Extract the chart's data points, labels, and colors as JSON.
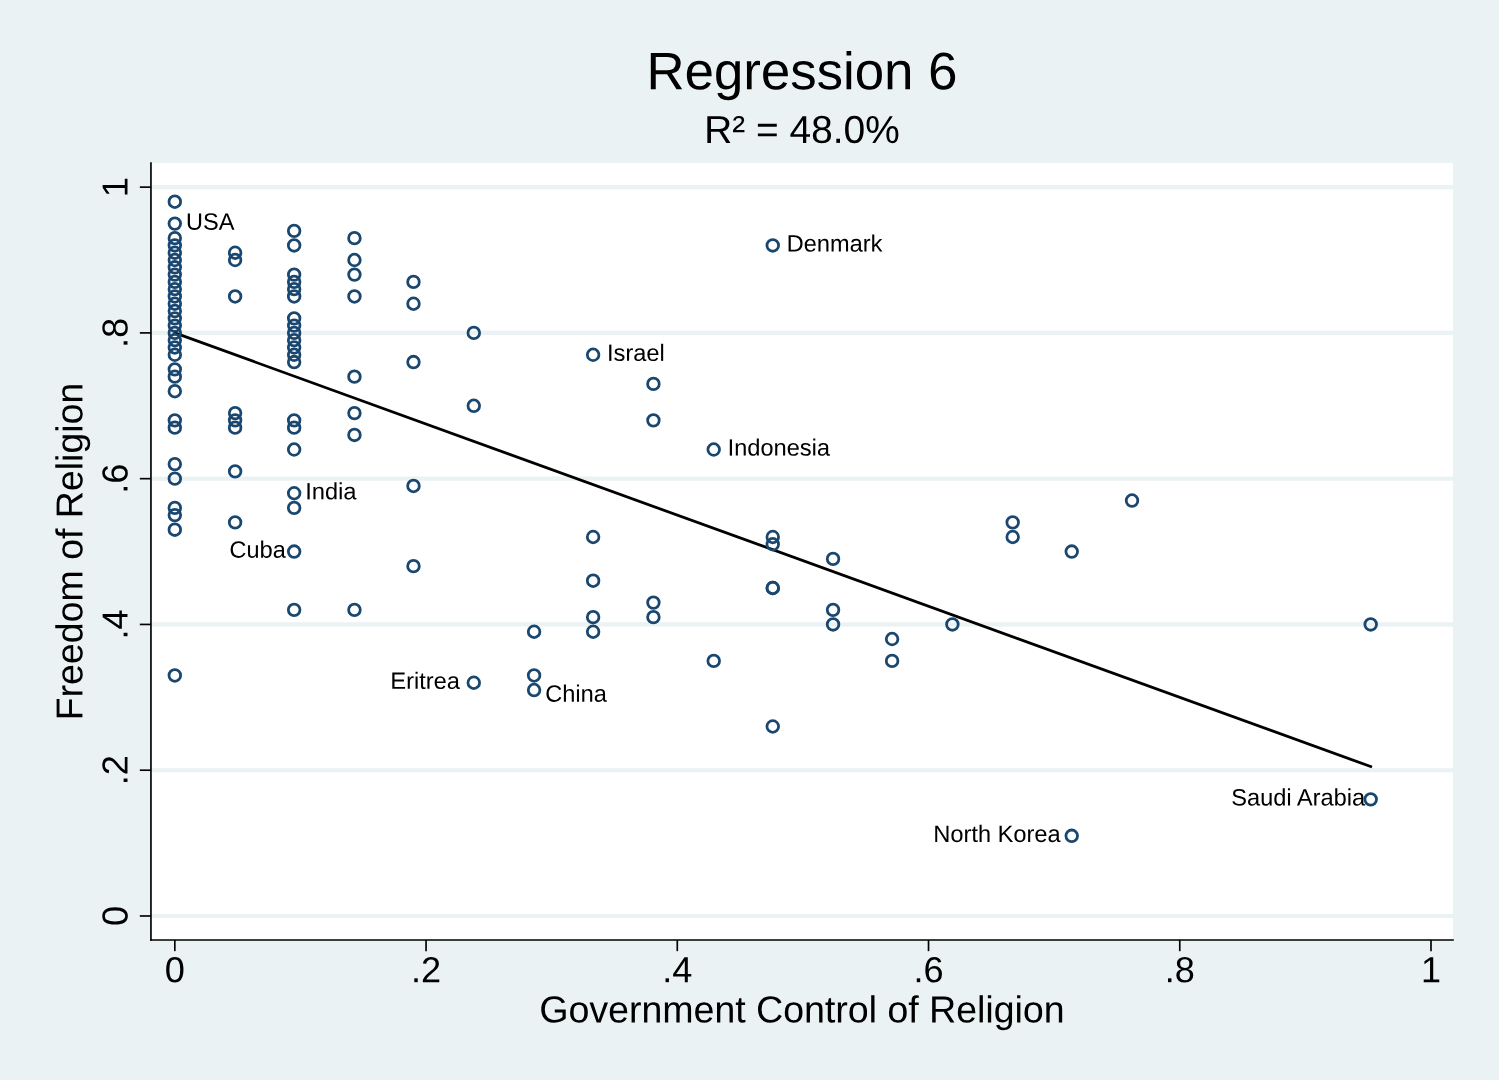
{
  "chart_data": {
    "type": "scatter",
    "title": "Regression 6",
    "subtitle": "R² = 48.0%",
    "xlabel": "Government Control of Religion",
    "ylabel": "Freedom of Religion",
    "series": [
      {
        "color": "#1a476f",
        "marker": "circle",
        "x": [
          0,
          0,
          0,
          0,
          0,
          0,
          0,
          0,
          0,
          0,
          0,
          0,
          0,
          0,
          0,
          0,
          0,
          0,
          0,
          0,
          0,
          0,
          0,
          0,
          0,
          0,
          0,
          0,
          0,
          0,
          0.048,
          0.048,
          0.048,
          0.048,
          0.048,
          0.048,
          0.048,
          0.048,
          0.095,
          0.095,
          0.095,
          0.095,
          0.095,
          0.095,
          0.095,
          0.095,
          0.095,
          0.095,
          0.095,
          0.095,
          0.095,
          0.095,
          0.095,
          0.095,
          0.095,
          0.095,
          0.095,
          0.095,
          0.143,
          0.143,
          0.143,
          0.143,
          0.143,
          0.143,
          0.143,
          0.143,
          0.19,
          0.19,
          0.19,
          0.19,
          0.19,
          0.238,
          0.238,
          0.238,
          0.286,
          0.286,
          0.286,
          0.333,
          0.333,
          0.333,
          0.333,
          0.333,
          0.381,
          0.381,
          0.381,
          0.381,
          0.429,
          0.429,
          0.476,
          0.476,
          0.476,
          0.476,
          0.476,
          0.476,
          0.524,
          0.524,
          0.524,
          0.571,
          0.571,
          0.619,
          0.667,
          0.667,
          0.714,
          0.714,
          0.762,
          0.952,
          0.952
        ],
        "values": [
          0.98,
          0.95,
          0.93,
          0.92,
          0.91,
          0.9,
          0.89,
          0.88,
          0.87,
          0.86,
          0.85,
          0.84,
          0.83,
          0.82,
          0.81,
          0.8,
          0.79,
          0.78,
          0.77,
          0.75,
          0.74,
          0.72,
          0.68,
          0.67,
          0.62,
          0.6,
          0.56,
          0.55,
          0.53,
          0.33,
          0.91,
          0.9,
          0.85,
          0.69,
          0.68,
          0.67,
          0.61,
          0.54,
          0.94,
          0.92,
          0.88,
          0.87,
          0.86,
          0.85,
          0.82,
          0.81,
          0.8,
          0.79,
          0.78,
          0.77,
          0.76,
          0.68,
          0.67,
          0.64,
          0.58,
          0.56,
          0.5,
          0.42,
          0.93,
          0.9,
          0.88,
          0.85,
          0.74,
          0.69,
          0.66,
          0.42,
          0.87,
          0.84,
          0.76,
          0.59,
          0.48,
          0.8,
          0.7,
          0.32,
          0.39,
          0.33,
          0.31,
          0.77,
          0.52,
          0.46,
          0.41,
          0.39,
          0.73,
          0.68,
          0.43,
          0.41,
          0.64,
          0.35,
          0.92,
          0.52,
          0.51,
          0.45,
          0.45,
          0.26,
          0.49,
          0.42,
          0.4,
          0.38,
          0.35,
          0.4,
          0.54,
          0.52,
          0.5,
          0.11,
          0.57,
          0.4,
          0.16
        ]
      },
      {
        "type": "line",
        "color": "#000000",
        "marker": "none",
        "line_style": "solid",
        "x": [
          0,
          0.952
        ],
        "values": [
          0.8,
          0.205
        ]
      }
    ],
    "annotations": [
      {
        "text": "USA",
        "x": 0,
        "y": 0.95
      },
      {
        "text": "Denmark",
        "x": 0.476,
        "y": 0.92
      },
      {
        "text": "Israel",
        "x": 0.333,
        "y": 0.77
      },
      {
        "text": "Indonesia",
        "x": 0.429,
        "y": 0.64
      },
      {
        "text": "India",
        "x": 0.095,
        "y": 0.58
      },
      {
        "text": "Cuba",
        "x": 0.095,
        "y": 0.5
      },
      {
        "text": "Eritrea",
        "x": 0.238,
        "y": 0.32
      },
      {
        "text": "China",
        "x": 0.286,
        "y": 0.31
      },
      {
        "text": "Saudi Arabia",
        "x": 0.952,
        "y": 0.16
      },
      {
        "text": "North Korea",
        "x": 0.714,
        "y": 0.11
      }
    ],
    "xlim": [
      -0.019,
      1.0175
    ],
    "ylim": [
      -0.033,
      1.033
    ],
    "xticks": [
      0,
      {
        "value": 0.2,
        "label": ".2"
      },
      {
        "value": 0.4,
        "label": ".4"
      },
      {
        "value": 0.6,
        "label": ".6"
      },
      {
        "value": 0.8,
        "label": ".8"
      },
      1
    ],
    "yticks": [
      0,
      {
        "value": 0.2,
        "label": ".2"
      },
      {
        "value": 0.4,
        "label": ".4"
      },
      {
        "value": 0.6,
        "label": ".6"
      },
      {
        "value": 0.8,
        "label": ".8"
      },
      1
    ],
    "grid": "y",
    "legend": false
  }
}
